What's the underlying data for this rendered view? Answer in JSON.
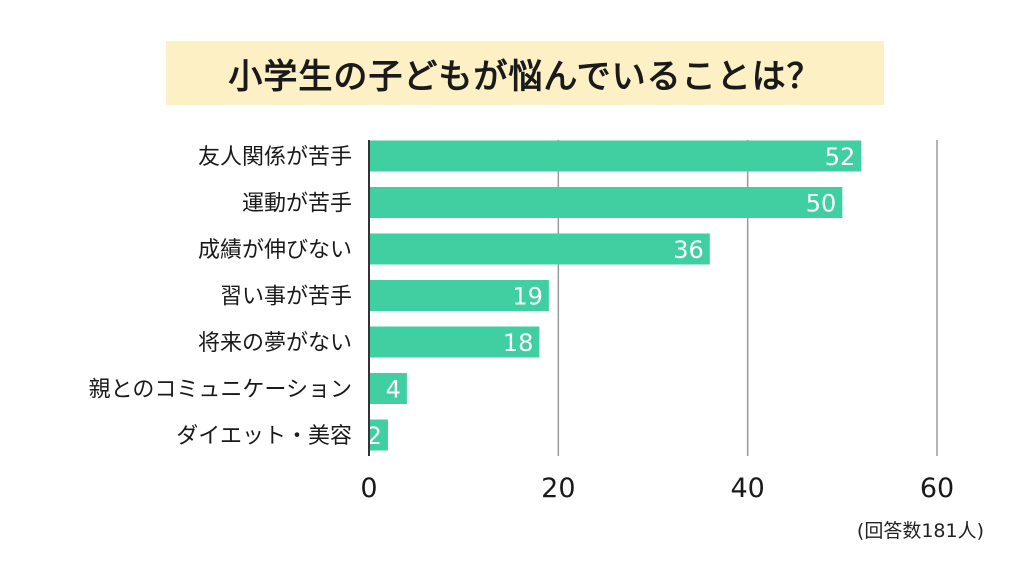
{
  "chart_data": {
    "type": "bar",
    "orientation": "horizontal",
    "title": "小学生の子どもが悩んでいることは？",
    "categories": [
      "友人関係が苦手",
      "運動が苦手",
      "成績が伸びない",
      "習い事が苦手",
      "将来の夢がない",
      "親とのコミュニケーション",
      "ダイエット・美容"
    ],
    "values": [
      52,
      50,
      36,
      19,
      18,
      4,
      2
    ],
    "xlim": [
      0,
      60
    ],
    "xticks": [
      0,
      20,
      40,
      60
    ],
    "grid": true,
    "bar_color": "#40cfa1",
    "label_color": "#ffffff",
    "note": "(回答数181人)"
  }
}
